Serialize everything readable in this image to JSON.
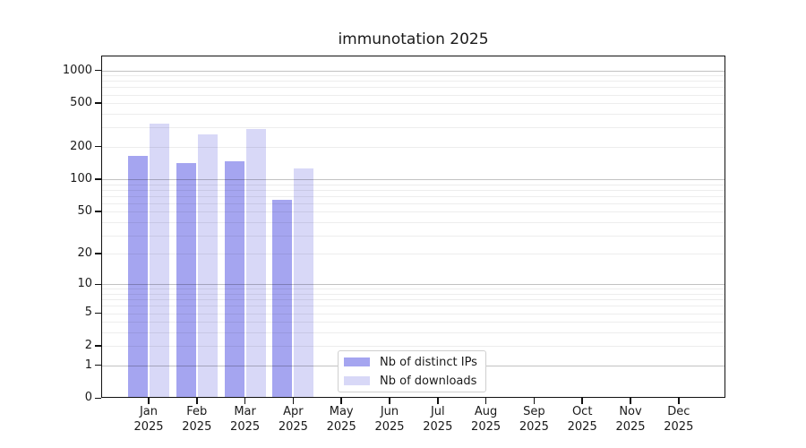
{
  "title": "immunotation 2025",
  "legend": {
    "items": [
      {
        "label": "Nb of distinct IPs"
      },
      {
        "label": "Nb of downloads"
      }
    ]
  },
  "colors": {
    "distinct_ips_bar": "#a5a5f0",
    "downloads_bar": "#d8d8f7",
    "major_grid": "#c3c3c3",
    "minor_grid": "#ececec",
    "axis": "#111111",
    "text": "#1a1a1a"
  },
  "chart_data": {
    "type": "bar",
    "title": "immunotation 2025",
    "y_scale": "log1p",
    "ylim": [
      0,
      1370
    ],
    "grid": "horizontal, minor + major (majors at 1, 10, 100, 1000), drawn over bars",
    "legend_position": "inside bottom-center",
    "categories": [
      "Jan 2025",
      "Feb 2025",
      "Mar 2025",
      "Apr 2025",
      "May 2025",
      "Jun 2025",
      "Jul 2025",
      "Aug 2025",
      "Sep 2025",
      "Oct 2025",
      "Nov 2025",
      "Dec 2025"
    ],
    "y_ticks": [
      0,
      1,
      2,
      5,
      10,
      20,
      50,
      100,
      200,
      500,
      1000
    ],
    "series": [
      {
        "name": "Nb of distinct IPs",
        "color": "#a5a5f0",
        "values": [
          165,
          140,
          145,
          65,
          null,
          null,
          null,
          null,
          null,
          null,
          null,
          null
        ]
      },
      {
        "name": "Nb of downloads",
        "color": "#d8d8f7",
        "values": [
          325,
          260,
          290,
          125,
          null,
          null,
          null,
          null,
          null,
          null,
          null,
          null
        ]
      }
    ]
  }
}
